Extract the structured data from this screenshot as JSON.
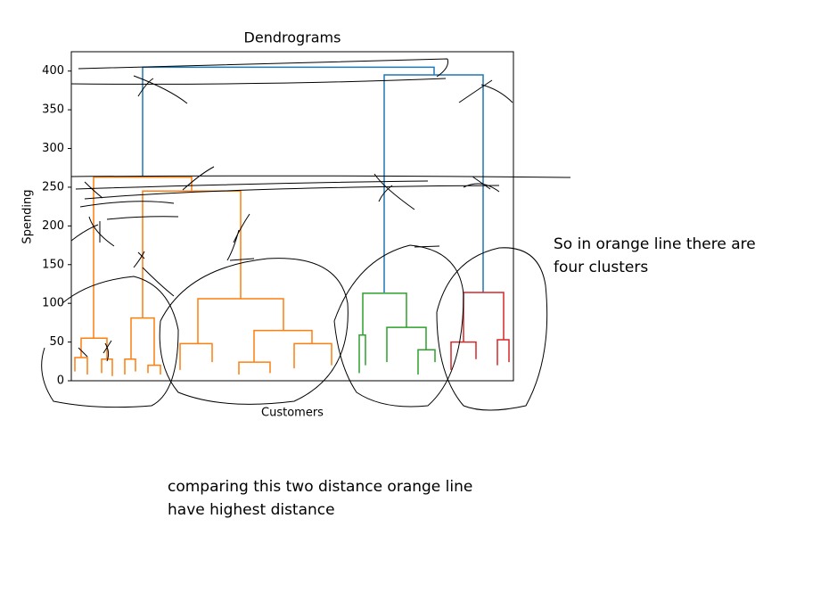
{
  "chart_data": {
    "type": "dendrogram",
    "title": "Dendrograms",
    "x_label": "Customers",
    "y_label": "Spending",
    "xlim": [
      0,
      1984
    ],
    "ylim": [
      0,
      425
    ],
    "yticks": [
      0,
      50,
      100,
      150,
      200,
      250,
      300,
      350,
      400
    ],
    "links": [
      {
        "color": "#1f77b4",
        "x": [
          320,
          320,
          1628,
          1628
        ],
        "y": [
          263,
          405,
          405,
          395
        ]
      },
      {
        "color": "#1f77b4",
        "x": [
          1404,
          1404,
          1848,
          1848
        ],
        "y": [
          114,
          395,
          395,
          114
        ]
      },
      {
        "color": "#ff7f0e",
        "x": [
          100,
          100,
          540,
          540
        ],
        "y": [
          55,
          263,
          263,
          245
        ]
      },
      {
        "color": "#ff7f0e",
        "x": [
          320,
          320,
          760,
          760
        ],
        "y": [
          81,
          245,
          245,
          106
        ]
      },
      {
        "color": "#ff7f0e",
        "x": [
          44,
          44,
          160,
          160
        ],
        "y": [
          30,
          55,
          55,
          28
        ]
      },
      {
        "color": "#ff7f0e",
        "x": [
          16,
          16,
          72,
          72
        ],
        "y": [
          12,
          30,
          30,
          8
        ]
      },
      {
        "color": "#ff7f0e",
        "x": [
          136,
          136,
          184,
          184
        ],
        "y": [
          10,
          28,
          28,
          6
        ]
      },
      {
        "color": "#ff7f0e",
        "x": [
          268,
          268,
          372,
          372
        ],
        "y": [
          28,
          81,
          81,
          20
        ]
      },
      {
        "color": "#ff7f0e",
        "x": [
          240,
          240,
          288,
          288
        ],
        "y": [
          8,
          28,
          28,
          12
        ]
      },
      {
        "color": "#ff7f0e",
        "x": [
          344,
          344,
          400,
          400
        ],
        "y": [
          10,
          20,
          20,
          8
        ]
      },
      {
        "color": "#ff7f0e",
        "x": [
          568,
          568,
          952,
          952
        ],
        "y": [
          48,
          106,
          106,
          65
        ]
      },
      {
        "color": "#ff7f0e",
        "x": [
          488,
          488,
          632,
          632
        ],
        "y": [
          14,
          48,
          48,
          24
        ]
      },
      {
        "color": "#ff7f0e",
        "x": [
          820,
          820,
          1080,
          1080
        ],
        "y": [
          24,
          65,
          65,
          48
        ]
      },
      {
        "color": "#ff7f0e",
        "x": [
          1000,
          1000,
          1168,
          1168
        ],
        "y": [
          16,
          48,
          48,
          20
        ]
      },
      {
        "color": "#ff7f0e",
        "x": [
          752,
          752,
          892,
          892
        ],
        "y": [
          8,
          24,
          24,
          10
        ]
      },
      {
        "color": "#2ca02c",
        "x": [
          1308,
          1308,
          1504,
          1504
        ],
        "y": [
          59,
          113,
          113,
          69
        ]
      },
      {
        "color": "#2ca02c",
        "x": [
          1292,
          1292,
          1320,
          1320
        ],
        "y": [
          10,
          59,
          59,
          20
        ]
      },
      {
        "color": "#2ca02c",
        "x": [
          1416,
          1416,
          1592,
          1592
        ],
        "y": [
          24,
          69,
          69,
          40
        ]
      },
      {
        "color": "#2ca02c",
        "x": [
          1556,
          1556,
          1632,
          1632
        ],
        "y": [
          8,
          40,
          40,
          24
        ]
      },
      {
        "color": "#d62728",
        "x": [
          1760,
          1760,
          1940,
          1940
        ],
        "y": [
          50,
          114,
          114,
          53
        ]
      },
      {
        "color": "#d62728",
        "x": [
          1704,
          1704,
          1816,
          1816
        ],
        "y": [
          14,
          50,
          50,
          28
        ]
      },
      {
        "color": "#d62728",
        "x": [
          1912,
          1912,
          1964,
          1964
        ],
        "y": [
          20,
          53,
          53,
          24
        ]
      }
    ],
    "annotations": [
      "So in orange line there are",
      "four clusters",
      "comparing this two distance orange line",
      "have highest distance"
    ]
  }
}
